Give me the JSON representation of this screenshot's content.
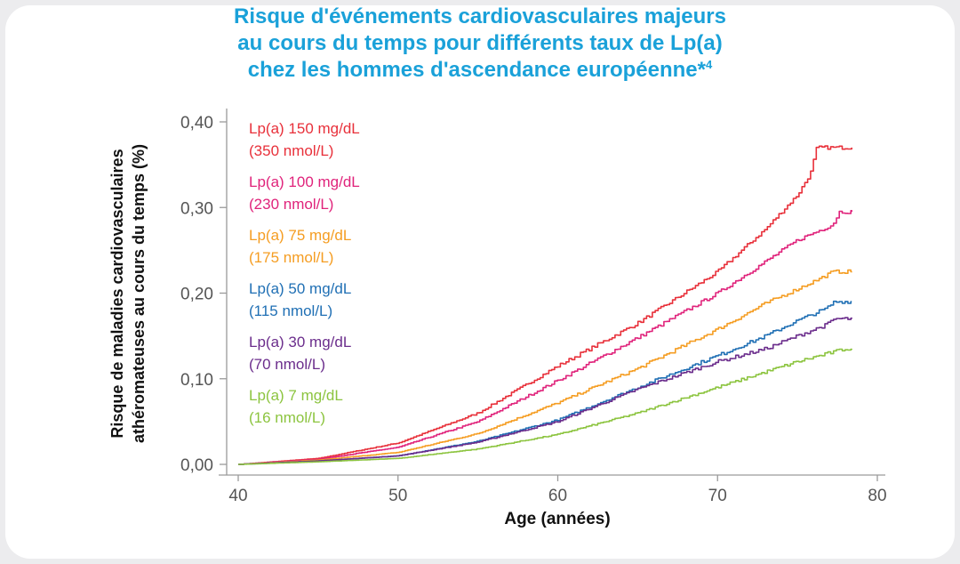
{
  "title": {
    "line1": "Risque d'événements cardiovasculaires majeurs",
    "line2": "au cours du temps pour différents taux de Lp(a)",
    "line3": "chez les hommes d'ascendance européenne*",
    "superscript": "4"
  },
  "colors": {
    "title": "#1aa1d9",
    "background": "#ffffff"
  },
  "chart_data": {
    "type": "line",
    "title": "Risque d'événements cardiovasculaires majeurs au cours du temps pour différents taux de Lp(a) chez les hommes d'ascendance européenne*4",
    "xlabel": "Age (années)",
    "ylabel_line1": "Risque de maladies cardiovasculaires",
    "ylabel_line2": "athéromateuses au cours du temps (%)",
    "xlim": [
      40,
      80
    ],
    "ylim": [
      0,
      0.4
    ],
    "x_ticks": [
      40,
      50,
      60,
      70,
      80
    ],
    "x_tick_labels": [
      "40",
      "50",
      "60",
      "70",
      "80"
    ],
    "y_ticks": [
      0,
      0.1,
      0.2,
      0.3,
      0.4
    ],
    "y_tick_labels": [
      "0,00",
      "0,10",
      "0,20",
      "0,30",
      "0,40"
    ],
    "grid": false,
    "legend_position": "top-left",
    "series": [
      {
        "name": "Lp(a) 150 mg/dL",
        "sub": "(350 nmol/L)",
        "color": "#e8303a",
        "x": [
          40,
          45,
          50,
          55,
          60,
          65,
          70,
          73,
          75,
          75.8,
          76.2,
          78.4
        ],
        "y": [
          0.0,
          0.007,
          0.025,
          0.06,
          0.115,
          0.165,
          0.225,
          0.275,
          0.315,
          0.34,
          0.37,
          0.37
        ]
      },
      {
        "name": "Lp(a) 100 mg/dL",
        "sub": "(230 nmol/L)",
        "color": "#e0237b",
        "x": [
          40,
          45,
          50,
          55,
          60,
          65,
          70,
          73,
          75,
          77.2,
          77.6,
          78.4
        ],
        "y": [
          0.0,
          0.006,
          0.02,
          0.05,
          0.098,
          0.148,
          0.2,
          0.237,
          0.262,
          0.28,
          0.295,
          0.295
        ]
      },
      {
        "name": "Lp(a) 75 mg/dL",
        "sub": "(175 nmol/L)",
        "color": "#f59d22",
        "x": [
          40,
          45,
          50,
          55,
          60,
          65,
          70,
          73,
          75,
          76.5,
          77.2,
          78.4
        ],
        "y": [
          0.0,
          0.005,
          0.014,
          0.036,
          0.072,
          0.112,
          0.158,
          0.188,
          0.205,
          0.218,
          0.225,
          0.225
        ]
      },
      {
        "name": "Lp(a) 50 mg/dL",
        "sub": "(115 nmol/L)",
        "color": "#1f6fb4",
        "x": [
          40,
          45,
          50,
          55,
          60,
          65,
          70,
          73,
          75,
          76.8,
          77.3,
          78.4
        ],
        "y": [
          0.0,
          0.004,
          0.01,
          0.027,
          0.052,
          0.09,
          0.127,
          0.15,
          0.168,
          0.182,
          0.19,
          0.19
        ]
      },
      {
        "name": "Lp(a) 30 mg/dL",
        "sub": "(70 nmol/L)",
        "color": "#6b2d8c",
        "x": [
          40,
          45,
          50,
          55,
          60,
          65,
          70,
          73,
          75,
          76.8,
          77.3,
          78.4
        ],
        "y": [
          0.0,
          0.004,
          0.01,
          0.026,
          0.05,
          0.088,
          0.12,
          0.135,
          0.15,
          0.163,
          0.17,
          0.17
        ]
      },
      {
        "name": "Lp(a) 7 mg/dL",
        "sub": "(16 nmol/L)",
        "color": "#8cc43f",
        "x": [
          40,
          45,
          50,
          55,
          60,
          65,
          70,
          73,
          75,
          77,
          78,
          78.4
        ],
        "y": [
          0.0,
          0.003,
          0.007,
          0.018,
          0.035,
          0.06,
          0.09,
          0.108,
          0.12,
          0.13,
          0.135,
          0.135
        ]
      }
    ]
  }
}
